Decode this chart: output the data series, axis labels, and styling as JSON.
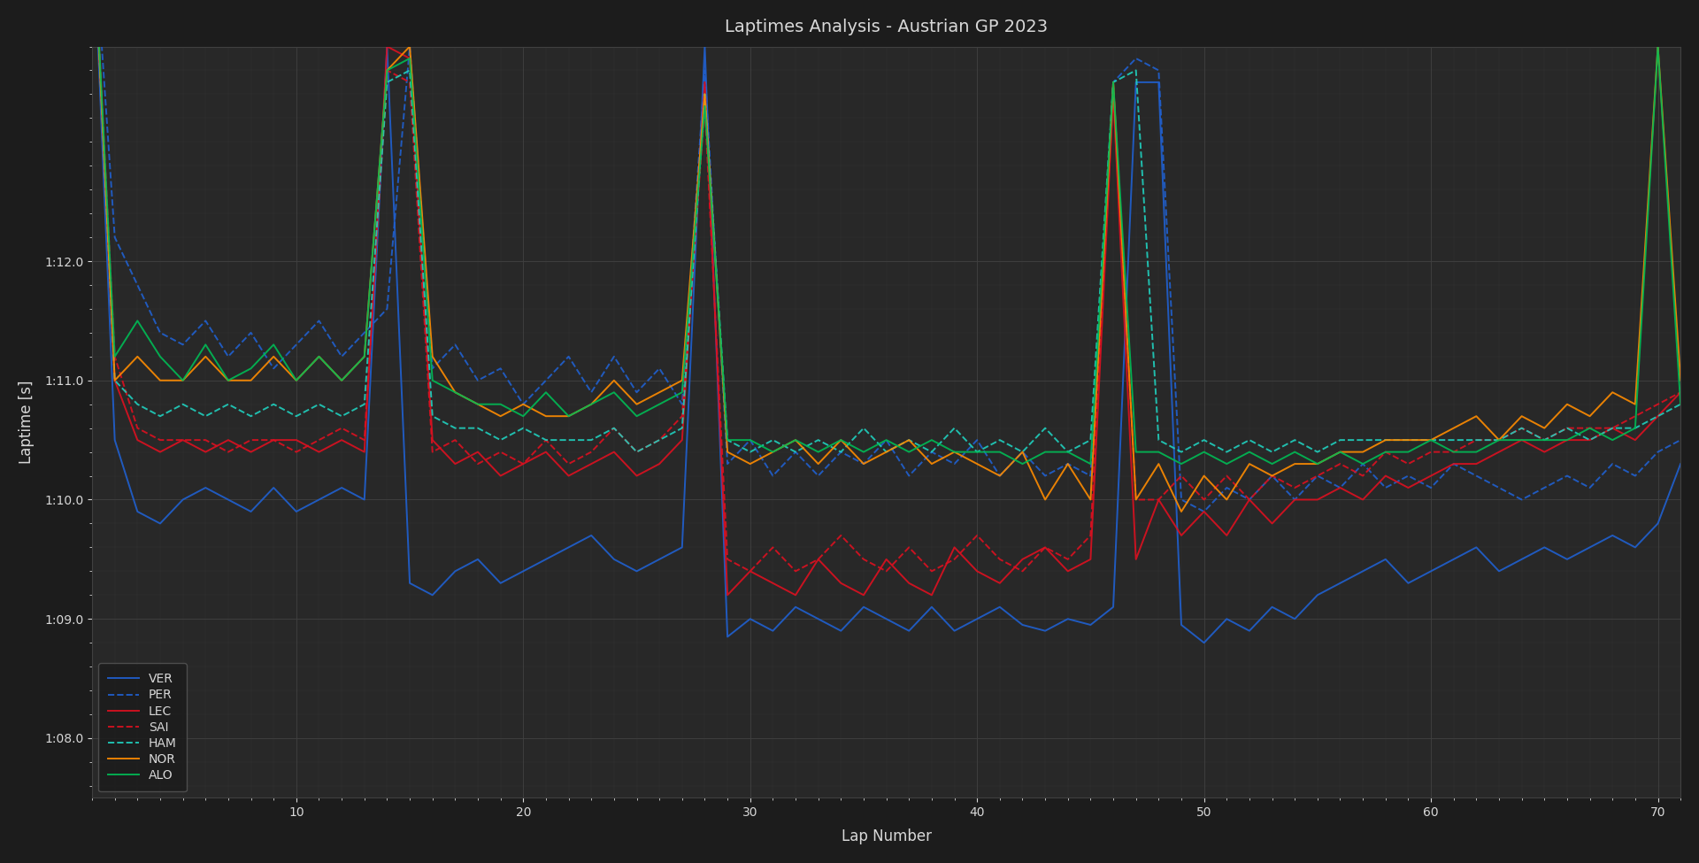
{
  "title": "Laptimes Analysis - Austrian GP 2023",
  "xlabel": "Lap Number",
  "ylabel": "Laptime [s]",
  "background_color": "#1c1c1c",
  "axes_color": "#282828",
  "grid_color": "#404040",
  "text_color": "#d8d8d8",
  "ylim": [
    67.5,
    73.8
  ],
  "xlim": [
    1,
    71
  ],
  "yticks": [
    68.0,
    69.0,
    70.0,
    71.0,
    72.0
  ],
  "xticks": [
    10,
    20,
    30,
    40,
    50,
    60,
    70
  ],
  "drivers_order": [
    "VER",
    "PER",
    "LEC",
    "SAI",
    "HAM",
    "NOR",
    "ALO"
  ],
  "drivers": {
    "VER": {
      "color": "#2060d0",
      "linestyle": "solid",
      "linewidth": 1.4
    },
    "PER": {
      "color": "#2060d0",
      "linestyle": "dashed",
      "linewidth": 1.4
    },
    "LEC": {
      "color": "#dd1020",
      "linestyle": "solid",
      "linewidth": 1.4
    },
    "SAI": {
      "color": "#dd1020",
      "linestyle": "dashed",
      "linewidth": 1.4
    },
    "HAM": {
      "color": "#20d0be",
      "linestyle": "dashed",
      "linewidth": 1.4
    },
    "NOR": {
      "color": "#ff8c00",
      "linestyle": "solid",
      "linewidth": 1.4
    },
    "ALO": {
      "color": "#00bb55",
      "linestyle": "solid",
      "linewidth": 1.4
    }
  },
  "lap_data": {
    "VER": {
      "laps": [
        1,
        2,
        3,
        4,
        5,
        6,
        7,
        8,
        9,
        10,
        11,
        12,
        13,
        14,
        15,
        16,
        17,
        18,
        19,
        20,
        21,
        22,
        23,
        24,
        25,
        26,
        27,
        28,
        29,
        30,
        31,
        32,
        33,
        34,
        35,
        36,
        37,
        38,
        39,
        40,
        41,
        42,
        43,
        44,
        45,
        46,
        47,
        48,
        49,
        50,
        51,
        52,
        53,
        54,
        55,
        56,
        57,
        58,
        59,
        60,
        61,
        62,
        63,
        64,
        65,
        66,
        67,
        68,
        69,
        70,
        71
      ],
      "times": [
        75.0,
        70.5,
        69.9,
        69.8,
        70.0,
        70.1,
        70.0,
        69.9,
        70.1,
        69.9,
        70.0,
        70.1,
        70.0,
        73.8,
        69.3,
        69.2,
        69.4,
        69.5,
        69.3,
        69.4,
        69.5,
        69.6,
        69.7,
        69.5,
        69.4,
        69.5,
        69.6,
        73.8,
        68.85,
        69.0,
        68.9,
        69.1,
        69.0,
        68.9,
        69.1,
        69.0,
        68.9,
        69.1,
        68.9,
        69.0,
        69.1,
        68.95,
        68.9,
        69.0,
        68.95,
        69.1,
        73.5,
        73.5,
        68.95,
        68.8,
        69.0,
        68.9,
        69.1,
        69.0,
        69.2,
        69.3,
        69.4,
        69.5,
        69.3,
        69.4,
        69.5,
        69.6,
        69.4,
        69.5,
        69.6,
        69.5,
        69.6,
        69.7,
        69.6,
        69.8,
        70.3
      ]
    },
    "PER": {
      "laps": [
        1,
        2,
        3,
        4,
        5,
        6,
        7,
        8,
        9,
        10,
        11,
        12,
        13,
        14,
        15,
        16,
        17,
        18,
        19,
        20,
        21,
        22,
        23,
        24,
        25,
        26,
        27,
        28,
        29,
        30,
        31,
        32,
        33,
        34,
        35,
        36,
        37,
        38,
        39,
        40,
        41,
        42,
        43,
        44,
        45,
        46,
        47,
        48,
        49,
        50,
        51,
        52,
        53,
        54,
        55,
        56,
        57,
        58,
        59,
        60,
        61,
        62,
        63,
        64,
        65,
        66,
        67,
        68,
        69,
        70,
        71
      ],
      "times": [
        75.0,
        72.2,
        71.8,
        71.4,
        71.3,
        71.5,
        71.2,
        71.4,
        71.1,
        71.3,
        71.5,
        71.2,
        71.4,
        71.6,
        73.8,
        71.1,
        71.3,
        71.0,
        71.1,
        70.8,
        71.0,
        71.2,
        70.9,
        71.2,
        70.9,
        71.1,
        70.8,
        73.6,
        70.3,
        70.5,
        70.2,
        70.4,
        70.2,
        70.4,
        70.3,
        70.5,
        70.2,
        70.4,
        70.3,
        70.5,
        70.2,
        70.4,
        70.2,
        70.3,
        70.2,
        73.5,
        73.7,
        73.6,
        70.0,
        69.9,
        70.1,
        70.0,
        70.2,
        70.0,
        70.2,
        70.1,
        70.3,
        70.1,
        70.2,
        70.1,
        70.3,
        70.2,
        70.1,
        70.0,
        70.1,
        70.2,
        70.1,
        70.3,
        70.2,
        70.4,
        70.5
      ]
    },
    "LEC": {
      "laps": [
        1,
        2,
        3,
        4,
        5,
        6,
        7,
        8,
        9,
        10,
        11,
        12,
        13,
        14,
        15,
        16,
        17,
        18,
        19,
        20,
        21,
        22,
        23,
        24,
        25,
        26,
        27,
        28,
        29,
        30,
        31,
        32,
        33,
        34,
        35,
        36,
        37,
        38,
        39,
        40,
        41,
        42,
        43,
        44,
        45,
        46,
        47,
        48,
        49,
        50,
        51,
        52,
        53,
        54,
        55,
        56,
        57,
        58,
        59,
        60,
        61,
        62,
        63,
        64,
        65,
        66,
        67,
        68,
        69,
        70,
        71
      ],
      "times": [
        75.0,
        71.0,
        70.5,
        70.4,
        70.5,
        70.4,
        70.5,
        70.4,
        70.5,
        70.5,
        70.4,
        70.5,
        70.4,
        73.8,
        73.7,
        70.5,
        70.3,
        70.4,
        70.2,
        70.3,
        70.4,
        70.2,
        70.3,
        70.4,
        70.2,
        70.3,
        70.5,
        73.5,
        69.2,
        69.4,
        69.3,
        69.2,
        69.5,
        69.3,
        69.2,
        69.5,
        69.3,
        69.2,
        69.6,
        69.4,
        69.3,
        69.5,
        69.6,
        69.4,
        69.5,
        73.4,
        69.5,
        70.0,
        69.7,
        69.9,
        69.7,
        70.0,
        69.8,
        70.0,
        70.0,
        70.1,
        70.0,
        70.2,
        70.1,
        70.2,
        70.3,
        70.3,
        70.4,
        70.5,
        70.4,
        70.5,
        70.5,
        70.6,
        70.5,
        70.7,
        70.9
      ]
    },
    "SAI": {
      "laps": [
        1,
        2,
        3,
        4,
        5,
        6,
        7,
        8,
        9,
        10,
        11,
        12,
        13,
        14,
        15,
        16,
        17,
        18,
        19,
        20,
        21,
        22,
        23,
        24,
        25,
        26,
        27,
        28,
        29,
        30,
        31,
        32,
        33,
        34,
        35,
        36,
        37,
        38,
        39,
        40,
        41,
        42,
        43,
        44,
        45,
        46,
        47,
        48,
        49,
        50,
        51,
        52,
        53,
        54,
        55,
        56,
        57,
        58,
        59,
        60,
        61,
        62,
        63,
        64,
        65,
        66,
        67,
        68,
        69,
        70,
        71
      ],
      "times": [
        75.0,
        71.2,
        70.6,
        70.5,
        70.5,
        70.5,
        70.4,
        70.5,
        70.5,
        70.4,
        70.5,
        70.6,
        70.5,
        73.6,
        73.5,
        70.4,
        70.5,
        70.3,
        70.4,
        70.3,
        70.5,
        70.3,
        70.4,
        70.6,
        70.4,
        70.5,
        70.7,
        73.3,
        69.5,
        69.4,
        69.6,
        69.4,
        69.5,
        69.7,
        69.5,
        69.4,
        69.6,
        69.4,
        69.5,
        69.7,
        69.5,
        69.4,
        69.6,
        69.5,
        69.7,
        73.5,
        70.0,
        70.0,
        70.2,
        70.0,
        70.2,
        70.0,
        70.2,
        70.1,
        70.2,
        70.3,
        70.2,
        70.4,
        70.3,
        70.4,
        70.4,
        70.5,
        70.5,
        70.6,
        70.5,
        70.6,
        70.6,
        70.6,
        70.7,
        70.8,
        70.9
      ]
    },
    "HAM": {
      "laps": [
        1,
        2,
        3,
        4,
        5,
        6,
        7,
        8,
        9,
        10,
        11,
        12,
        13,
        14,
        15,
        16,
        17,
        18,
        19,
        20,
        21,
        22,
        23,
        24,
        25,
        26,
        27,
        28,
        29,
        30,
        31,
        32,
        33,
        34,
        35,
        36,
        37,
        38,
        39,
        40,
        41,
        42,
        43,
        44,
        45,
        46,
        47,
        48,
        49,
        50,
        51,
        52,
        53,
        54,
        55,
        56,
        57,
        58,
        59,
        60,
        61,
        62,
        63,
        64,
        65,
        66,
        67,
        68,
        69,
        70,
        71
      ],
      "times": [
        75.0,
        71.0,
        70.8,
        70.7,
        70.8,
        70.7,
        70.8,
        70.7,
        70.8,
        70.7,
        70.8,
        70.7,
        70.8,
        73.5,
        73.6,
        70.7,
        70.6,
        70.6,
        70.5,
        70.6,
        70.5,
        70.5,
        70.5,
        70.6,
        70.4,
        70.5,
        70.6,
        73.4,
        70.5,
        70.4,
        70.5,
        70.4,
        70.5,
        70.4,
        70.6,
        70.4,
        70.5,
        70.4,
        70.6,
        70.4,
        70.5,
        70.4,
        70.6,
        70.4,
        70.5,
        73.5,
        73.6,
        70.5,
        70.4,
        70.5,
        70.4,
        70.5,
        70.4,
        70.5,
        70.4,
        70.5,
        70.5,
        70.5,
        70.5,
        70.5,
        70.5,
        70.5,
        70.5,
        70.6,
        70.5,
        70.6,
        70.5,
        70.6,
        70.6,
        70.7,
        70.8
      ]
    },
    "NOR": {
      "laps": [
        1,
        2,
        3,
        4,
        5,
        6,
        7,
        8,
        9,
        10,
        11,
        12,
        13,
        14,
        15,
        16,
        17,
        18,
        19,
        20,
        21,
        22,
        23,
        24,
        25,
        26,
        27,
        28,
        29,
        30,
        31,
        32,
        33,
        34,
        35,
        36,
        37,
        38,
        39,
        40,
        41,
        42,
        43,
        44,
        45,
        46,
        47,
        48,
        49,
        50,
        51,
        52,
        53,
        54,
        55,
        56,
        57,
        58,
        59,
        60,
        61,
        62,
        63,
        64,
        65,
        66,
        67,
        68,
        69,
        70,
        71
      ],
      "times": [
        75.0,
        71.0,
        71.2,
        71.0,
        71.0,
        71.2,
        71.0,
        71.0,
        71.2,
        71.0,
        71.2,
        71.0,
        71.2,
        73.6,
        73.8,
        71.2,
        70.9,
        70.8,
        70.7,
        70.8,
        70.7,
        70.7,
        70.8,
        71.0,
        70.8,
        70.9,
        71.0,
        73.4,
        70.4,
        70.3,
        70.4,
        70.5,
        70.3,
        70.5,
        70.3,
        70.4,
        70.5,
        70.3,
        70.4,
        70.3,
        70.2,
        70.4,
        70.0,
        70.3,
        70.0,
        73.5,
        70.0,
        70.3,
        69.9,
        70.2,
        70.0,
        70.3,
        70.2,
        70.3,
        70.3,
        70.4,
        70.4,
        70.5,
        70.5,
        70.5,
        70.6,
        70.7,
        70.5,
        70.7,
        70.6,
        70.8,
        70.7,
        70.9,
        70.8,
        73.8,
        71.0
      ]
    },
    "ALO": {
      "laps": [
        1,
        2,
        3,
        4,
        5,
        6,
        7,
        8,
        9,
        10,
        11,
        12,
        13,
        14,
        15,
        16,
        17,
        18,
        19,
        20,
        21,
        22,
        23,
        24,
        25,
        26,
        27,
        28,
        29,
        30,
        31,
        32,
        33,
        34,
        35,
        36,
        37,
        38,
        39,
        40,
        41,
        42,
        43,
        44,
        45,
        46,
        47,
        48,
        49,
        50,
        51,
        52,
        53,
        54,
        55,
        56,
        57,
        58,
        59,
        60,
        61,
        62,
        63,
        64,
        65,
        66,
        67,
        68,
        69,
        70,
        71
      ],
      "times": [
        75.0,
        71.2,
        71.5,
        71.2,
        71.0,
        71.3,
        71.0,
        71.1,
        71.3,
        71.0,
        71.2,
        71.0,
        71.2,
        73.6,
        73.7,
        71.0,
        70.9,
        70.8,
        70.8,
        70.7,
        70.9,
        70.7,
        70.8,
        70.9,
        70.7,
        70.8,
        70.9,
        73.3,
        70.5,
        70.5,
        70.4,
        70.5,
        70.4,
        70.5,
        70.4,
        70.5,
        70.4,
        70.5,
        70.4,
        70.4,
        70.4,
        70.3,
        70.4,
        70.4,
        70.3,
        73.5,
        70.4,
        70.4,
        70.3,
        70.4,
        70.3,
        70.4,
        70.3,
        70.4,
        70.3,
        70.4,
        70.3,
        70.4,
        70.4,
        70.5,
        70.4,
        70.4,
        70.5,
        70.5,
        70.5,
        70.5,
        70.6,
        70.5,
        70.6,
        73.8,
        70.8
      ]
    }
  }
}
